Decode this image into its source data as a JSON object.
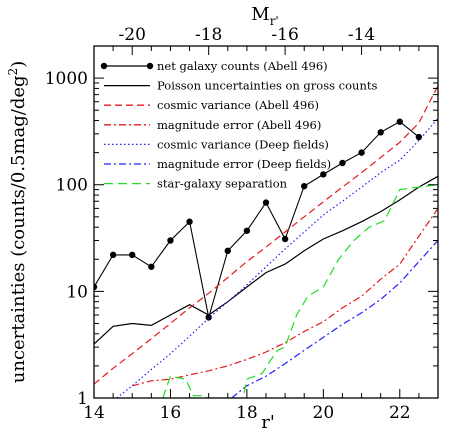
{
  "chart_data": {
    "type": "line",
    "xlabel": "r'",
    "ylabel": "uncertainties (counts/0.5mag/deg",
    "ylabel_sup": "2",
    "ylabel_tail": ")",
    "top_axis_label": "M",
    "top_axis_label_sub": "r'",
    "xlim": [
      14,
      23
    ],
    "ylim": [
      1,
      2000
    ],
    "y_scale": "log",
    "x_ticks": [
      14,
      16,
      18,
      20,
      22
    ],
    "x_tick_labels": [
      "14",
      "16",
      "18",
      "20",
      "22"
    ],
    "y_ticks": [
      1,
      10,
      100,
      1000
    ],
    "y_tick_labels": [
      "1",
      "10",
      "100",
      "1000"
    ],
    "top_ticks_x": [
      15.0,
      17.0,
      19.0,
      21.0
    ],
    "top_tick_labels": [
      "-20",
      "-18",
      "-16",
      "-14"
    ],
    "legend_position": "top-left",
    "series": [
      {
        "name": "net galaxy counts (Abell 496)",
        "color": "#000000",
        "dash": "none",
        "markers": true,
        "x": [
          14.0,
          14.5,
          15.0,
          15.5,
          16.0,
          16.5,
          17.0,
          17.5,
          18.0,
          18.5,
          19.0,
          19.5,
          20.0,
          20.5,
          21.0,
          21.5,
          22.0,
          22.5
        ],
        "y": [
          11,
          22,
          22,
          17,
          30,
          45,
          5.7,
          24,
          37,
          68,
          31,
          97,
          125,
          160,
          200,
          310,
          390,
          280
        ]
      },
      {
        "name": "Poisson uncertainties on gross counts",
        "color": "#000000",
        "dash": "none",
        "markers": false,
        "x": [
          14.0,
          14.5,
          15.0,
          15.5,
          16.0,
          16.5,
          17.0,
          17.5,
          18.0,
          18.5,
          19.0,
          19.5,
          20.0,
          20.5,
          21.0,
          21.5,
          22.0,
          22.5,
          23.0
        ],
        "y": [
          3.2,
          4.7,
          5.0,
          4.8,
          6.0,
          7.5,
          6.0,
          8.0,
          11.0,
          15.0,
          18.0,
          24.0,
          31.0,
          37.0,
          45.0,
          56.0,
          72.0,
          95.0,
          120.0
        ]
      },
      {
        "name": "cosmic variance (Abell 496)",
        "color": "#e41a1c",
        "dash": "7,4",
        "markers": false,
        "x": [
          14.0,
          14.5,
          15.0,
          15.5,
          16.0,
          16.5,
          17.0,
          17.5,
          18.0,
          18.5,
          19.0,
          19.5,
          20.0,
          20.5,
          21.0,
          21.5,
          22.0,
          22.5,
          23.0
        ],
        "y": [
          1.35,
          1.9,
          2.6,
          3.6,
          5.0,
          7.0,
          9.6,
          13.5,
          19.0,
          26.0,
          36.0,
          50.0,
          69.0,
          95.0,
          130.0,
          180.0,
          250.0,
          380.0,
          850.0
        ]
      },
      {
        "name": "magnitude error (Abell 496)",
        "color": "#e41a1c",
        "dash": "7,3,2,3",
        "markers": false,
        "x": [
          15.0,
          15.5,
          16.0,
          16.5,
          17.0,
          17.5,
          18.0,
          18.5,
          19.0,
          19.5,
          20.0,
          20.5,
          21.0,
          21.5,
          22.0,
          22.5,
          23.0
        ],
        "y": [
          1.3,
          1.45,
          1.5,
          1.65,
          1.8,
          2.0,
          2.3,
          2.7,
          3.3,
          4.2,
          5.2,
          7.0,
          9.0,
          13.0,
          18.0,
          33.0,
          60.0
        ]
      },
      {
        "name": "cosmic variance (Deep fields)",
        "color": "#2020ff",
        "dash": "1.5,2.5",
        "markers": false,
        "x": [
          14.6,
          15.0,
          15.5,
          16.0,
          16.5,
          17.0,
          17.5,
          18.0,
          18.5,
          19.0,
          19.5,
          20.0,
          20.5,
          21.0,
          21.5,
          22.0,
          22.5,
          23.0
        ],
        "y": [
          1.0,
          1.3,
          1.85,
          2.6,
          3.8,
          5.6,
          8.0,
          11.5,
          17.0,
          25.0,
          36.0,
          52.0,
          70.0,
          95.0,
          130.0,
          170.0,
          260.0,
          420.0
        ]
      },
      {
        "name": "magnitude error (Deep fields)",
        "color": "#2020ff",
        "dash": "7,3,2,3",
        "markers": false,
        "x": [
          17.6,
          18.0,
          18.5,
          19.0,
          19.5,
          20.0,
          20.5,
          21.0,
          21.5,
          22.0,
          22.5,
          23.0
        ],
        "y": [
          1.0,
          1.3,
          1.6,
          2.1,
          2.8,
          3.7,
          4.9,
          6.3,
          8.4,
          12.0,
          19.0,
          30.0
        ]
      },
      {
        "name": "star-galaxy separation",
        "color": "#22dd22",
        "dash": "9,5",
        "markers": false,
        "x": [
          15.8,
          16.0,
          16.4,
          16.6,
          16.8,
          17.0,
          17.9,
          18.0,
          18.4,
          18.6,
          18.8,
          19.0,
          19.3,
          19.6,
          20.0,
          20.4,
          20.8,
          21.2,
          21.6,
          22.0,
          22.5,
          23.0
        ],
        "y": [
          1.0,
          1.6,
          1.5,
          1.05,
          1.05,
          1.0,
          1.0,
          1.5,
          1.7,
          2.2,
          2.8,
          3.0,
          6.0,
          9.0,
          11.0,
          20.0,
          30.0,
          40.0,
          46.0,
          90.0,
          95.0,
          100.0
        ]
      }
    ]
  }
}
